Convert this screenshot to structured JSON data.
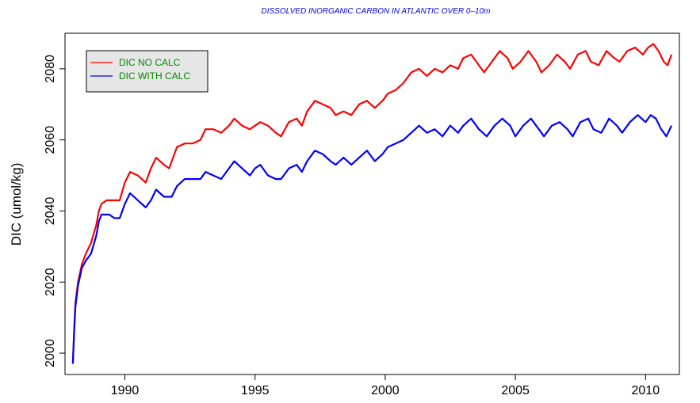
{
  "chart_data": {
    "type": "line",
    "title": "DISSOLVED INORGANIC CARBON IN ATLANTIC OVER 0–10m",
    "xlabel": "",
    "ylabel": "DIC (umol/kg)",
    "xlim": [
      1987.7,
      2011.3
    ],
    "ylim": [
      1994,
      2090
    ],
    "xticks": [
      1990,
      1995,
      2000,
      2005,
      2010
    ],
    "yticks": [
      2000,
      2020,
      2040,
      2060,
      2080
    ],
    "grid": false,
    "legend_position": "top-left",
    "series": [
      {
        "name": "DIC NO CALC",
        "color": "#ff0000",
        "points": [
          [
            1988.0,
            1997
          ],
          [
            1988.05,
            2006
          ],
          [
            1988.1,
            2014
          ],
          [
            1988.2,
            2020
          ],
          [
            1988.35,
            2025
          ],
          [
            1988.5,
            2028
          ],
          [
            1988.7,
            2031
          ],
          [
            1988.9,
            2036
          ],
          [
            1989.0,
            2040
          ],
          [
            1989.1,
            2042
          ],
          [
            1989.3,
            2043
          ],
          [
            1989.5,
            2043
          ],
          [
            1989.8,
            2043
          ],
          [
            1990.0,
            2048
          ],
          [
            1990.2,
            2051
          ],
          [
            1990.5,
            2050
          ],
          [
            1990.8,
            2048
          ],
          [
            1991.0,
            2052
          ],
          [
            1991.2,
            2055
          ],
          [
            1991.5,
            2053
          ],
          [
            1991.7,
            2052
          ],
          [
            1992.0,
            2058
          ],
          [
            1992.3,
            2059
          ],
          [
            1992.6,
            2059
          ],
          [
            1992.9,
            2060
          ],
          [
            1993.1,
            2063
          ],
          [
            1993.4,
            2063
          ],
          [
            1993.7,
            2062
          ],
          [
            1994.0,
            2064
          ],
          [
            1994.2,
            2066
          ],
          [
            1994.5,
            2064
          ],
          [
            1994.8,
            2063
          ],
          [
            1995.0,
            2064
          ],
          [
            1995.2,
            2065
          ],
          [
            1995.5,
            2064
          ],
          [
            1995.8,
            2062
          ],
          [
            1996.0,
            2061
          ],
          [
            1996.3,
            2065
          ],
          [
            1996.6,
            2066
          ],
          [
            1996.8,
            2064
          ],
          [
            1997.0,
            2068
          ],
          [
            1997.3,
            2071
          ],
          [
            1997.6,
            2070
          ],
          [
            1997.9,
            2069
          ],
          [
            1998.1,
            2067
          ],
          [
            1998.4,
            2068
          ],
          [
            1998.7,
            2067
          ],
          [
            1999.0,
            2070
          ],
          [
            1999.3,
            2071
          ],
          [
            1999.6,
            2069
          ],
          [
            1999.9,
            2071
          ],
          [
            2000.1,
            2073
          ],
          [
            2000.4,
            2074
          ],
          [
            2000.7,
            2076
          ],
          [
            2001.0,
            2079
          ],
          [
            2001.3,
            2080
          ],
          [
            2001.6,
            2078
          ],
          [
            2001.9,
            2080
          ],
          [
            2002.2,
            2079
          ],
          [
            2002.5,
            2081
          ],
          [
            2002.8,
            2080
          ],
          [
            2003.0,
            2083
          ],
          [
            2003.3,
            2084
          ],
          [
            2003.6,
            2081
          ],
          [
            2003.8,
            2079
          ],
          [
            2004.1,
            2082
          ],
          [
            2004.4,
            2085
          ],
          [
            2004.7,
            2083
          ],
          [
            2004.9,
            2080
          ],
          [
            2005.2,
            2082
          ],
          [
            2005.5,
            2085
          ],
          [
            2005.8,
            2082
          ],
          [
            2006.0,
            2079
          ],
          [
            2006.3,
            2081
          ],
          [
            2006.6,
            2084
          ],
          [
            2006.9,
            2082
          ],
          [
            2007.1,
            2080
          ],
          [
            2007.4,
            2084
          ],
          [
            2007.7,
            2085
          ],
          [
            2007.9,
            2082
          ],
          [
            2008.2,
            2081
          ],
          [
            2008.5,
            2085
          ],
          [
            2008.8,
            2083
          ],
          [
            2009.0,
            2082
          ],
          [
            2009.3,
            2085
          ],
          [
            2009.6,
            2086
          ],
          [
            2009.9,
            2084
          ],
          [
            2010.1,
            2086
          ],
          [
            2010.3,
            2087
          ],
          [
            2010.5,
            2085
          ],
          [
            2010.7,
            2082
          ],
          [
            2010.85,
            2081
          ],
          [
            2011.0,
            2084
          ]
        ]
      },
      {
        "name": "DIC WITH CALC",
        "color": "#0000ff",
        "points": [
          [
            1988.0,
            1997
          ],
          [
            1988.05,
            2006
          ],
          [
            1988.1,
            2013
          ],
          [
            1988.2,
            2019
          ],
          [
            1988.35,
            2024
          ],
          [
            1988.5,
            2026
          ],
          [
            1988.7,
            2028
          ],
          [
            1988.9,
            2033
          ],
          [
            1989.0,
            2037
          ],
          [
            1989.1,
            2039
          ],
          [
            1989.4,
            2039
          ],
          [
            1989.6,
            2038
          ],
          [
            1989.8,
            2038
          ],
          [
            1990.0,
            2042
          ],
          [
            1990.2,
            2045
          ],
          [
            1990.5,
            2043
          ],
          [
            1990.8,
            2041
          ],
          [
            1991.0,
            2043
          ],
          [
            1991.2,
            2046
          ],
          [
            1991.5,
            2044
          ],
          [
            1991.8,
            2044
          ],
          [
            1992.0,
            2047
          ],
          [
            1992.3,
            2049
          ],
          [
            1992.6,
            2049
          ],
          [
            1992.9,
            2049
          ],
          [
            1993.1,
            2051
          ],
          [
            1993.4,
            2050
          ],
          [
            1993.7,
            2049
          ],
          [
            1994.0,
            2052
          ],
          [
            1994.2,
            2054
          ],
          [
            1994.5,
            2052
          ],
          [
            1994.8,
            2050
          ],
          [
            1995.0,
            2052
          ],
          [
            1995.2,
            2053
          ],
          [
            1995.5,
            2050
          ],
          [
            1995.8,
            2049
          ],
          [
            1996.0,
            2049
          ],
          [
            1996.3,
            2052
          ],
          [
            1996.6,
            2053
          ],
          [
            1996.8,
            2051
          ],
          [
            1997.0,
            2054
          ],
          [
            1997.3,
            2057
          ],
          [
            1997.6,
            2056
          ],
          [
            1997.9,
            2054
          ],
          [
            1998.1,
            2053
          ],
          [
            1998.4,
            2055
          ],
          [
            1998.7,
            2053
          ],
          [
            1999.0,
            2055
          ],
          [
            1999.3,
            2057
          ],
          [
            1999.6,
            2054
          ],
          [
            1999.9,
            2056
          ],
          [
            2000.1,
            2058
          ],
          [
            2000.4,
            2059
          ],
          [
            2000.7,
            2060
          ],
          [
            2001.0,
            2062
          ],
          [
            2001.3,
            2064
          ],
          [
            2001.6,
            2062
          ],
          [
            2001.9,
            2063
          ],
          [
            2002.2,
            2061
          ],
          [
            2002.5,
            2064
          ],
          [
            2002.8,
            2062
          ],
          [
            2003.0,
            2064
          ],
          [
            2003.3,
            2066
          ],
          [
            2003.6,
            2063
          ],
          [
            2003.9,
            2061
          ],
          [
            2004.2,
            2064
          ],
          [
            2004.5,
            2066
          ],
          [
            2004.8,
            2064
          ],
          [
            2005.0,
            2061
          ],
          [
            2005.3,
            2064
          ],
          [
            2005.6,
            2066
          ],
          [
            2005.9,
            2063
          ],
          [
            2006.1,
            2061
          ],
          [
            2006.4,
            2064
          ],
          [
            2006.7,
            2065
          ],
          [
            2007.0,
            2063
          ],
          [
            2007.2,
            2061
          ],
          [
            2007.5,
            2065
          ],
          [
            2007.8,
            2066
          ],
          [
            2008.0,
            2063
          ],
          [
            2008.3,
            2062
          ],
          [
            2008.6,
            2066
          ],
          [
            2008.9,
            2064
          ],
          [
            2009.1,
            2062
          ],
          [
            2009.4,
            2065
          ],
          [
            2009.7,
            2067
          ],
          [
            2010.0,
            2065
          ],
          [
            2010.2,
            2067
          ],
          [
            2010.4,
            2066
          ],
          [
            2010.6,
            2063
          ],
          [
            2010.8,
            2061
          ],
          [
            2011.0,
            2064
          ]
        ]
      }
    ]
  }
}
